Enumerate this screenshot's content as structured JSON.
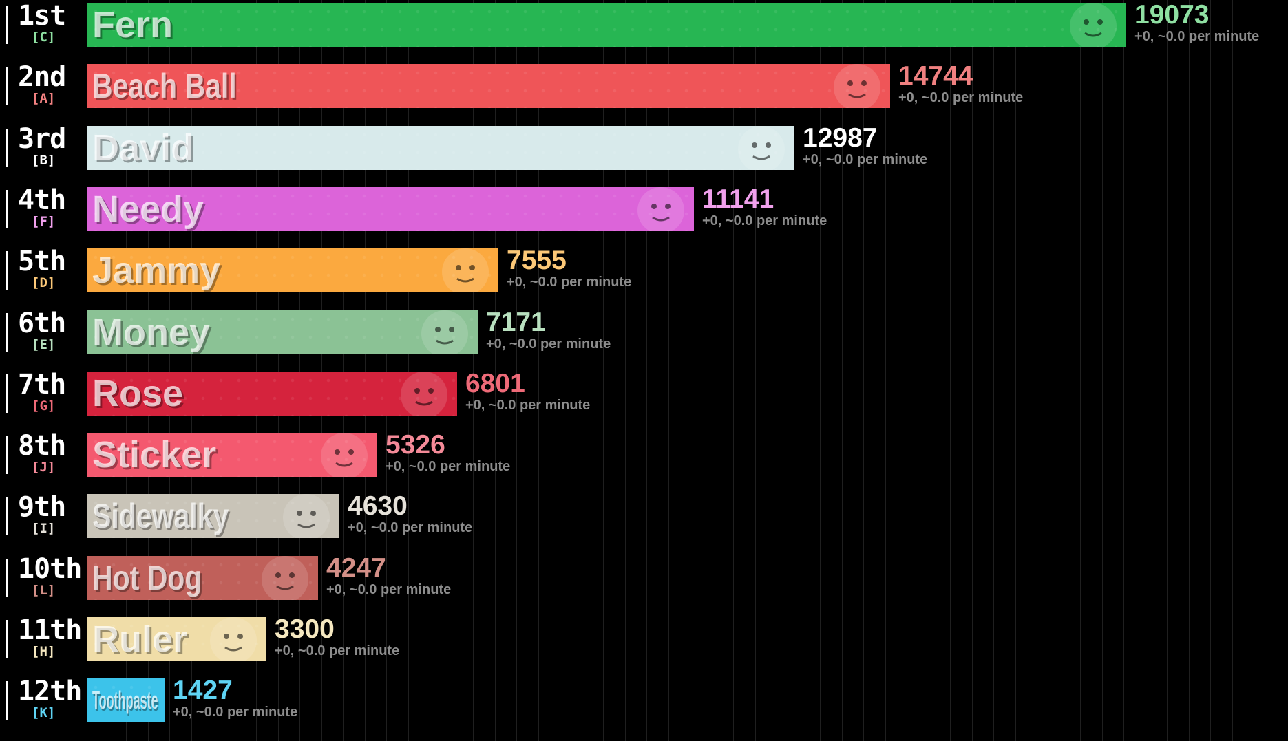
{
  "chart_data": {
    "type": "bar",
    "orientation": "horizontal",
    "title": "",
    "xlabel": "",
    "ylabel": "",
    "xlim": [
      0,
      19073
    ],
    "grid": true,
    "rate_text": "+0, ~0.0 per minute",
    "entries": [
      {
        "rank": "1st",
        "group": "[C]",
        "name": "Fern",
        "value": 19073,
        "color": "#27b653",
        "label_color": "#8fe0a2",
        "name_style": "wide"
      },
      {
        "rank": "2nd",
        "group": "[A]",
        "name": "Beach Ball",
        "value": 14744,
        "color": "#ef5558",
        "label_color": "#f08080",
        "name_style": "narrow"
      },
      {
        "rank": "3rd",
        "group": "[B]",
        "name": "David",
        "value": 12987,
        "color": "#d8eaeb",
        "label_color": "#ffffff",
        "name_style": "wide"
      },
      {
        "rank": "4th",
        "group": "[F]",
        "name": "Needy",
        "value": 11141,
        "color": "#dc64d9",
        "label_color": "#f0a0ec",
        "name_style": "wide"
      },
      {
        "rank": "5th",
        "group": "[D]",
        "name": "Jammy",
        "value": 7555,
        "color": "#fba93f",
        "label_color": "#fcc878",
        "name_style": "wide"
      },
      {
        "rank": "6th",
        "group": "[E]",
        "name": "Money",
        "value": 7171,
        "color": "#8bc295",
        "label_color": "#b8e0bf",
        "name_style": "wide"
      },
      {
        "rank": "7th",
        "group": "[G]",
        "name": "Rose",
        "value": 6801,
        "color": "#d5233d",
        "label_color": "#ee6a78",
        "name_style": "wide"
      },
      {
        "rank": "8th",
        "group": "[J]",
        "name": "Sticker",
        "value": 5326,
        "color": "#f4596f",
        "label_color": "#f48a98",
        "name_style": "wide"
      },
      {
        "rank": "9th",
        "group": "[I]",
        "name": "Sidewalky",
        "value": 4630,
        "color": "#c9c4b8",
        "label_color": "#e6e2da",
        "name_style": "narrow"
      },
      {
        "rank": "10th",
        "group": "[L]",
        "name": "Hot Dog",
        "value": 4247,
        "color": "#c0605a",
        "label_color": "#d49088",
        "name_style": "narrow"
      },
      {
        "rank": "11th",
        "group": "[H]",
        "name": "Ruler",
        "value": 3300,
        "color": "#f0dda8",
        "label_color": "#f5e8c0",
        "name_style": "wide"
      },
      {
        "rank": "12th",
        "group": "[K]",
        "name": "Toothpaste",
        "value": 1427,
        "color": "#3cc3ea",
        "label_color": "#5fd4f4",
        "name_style": "tiny"
      }
    ]
  }
}
